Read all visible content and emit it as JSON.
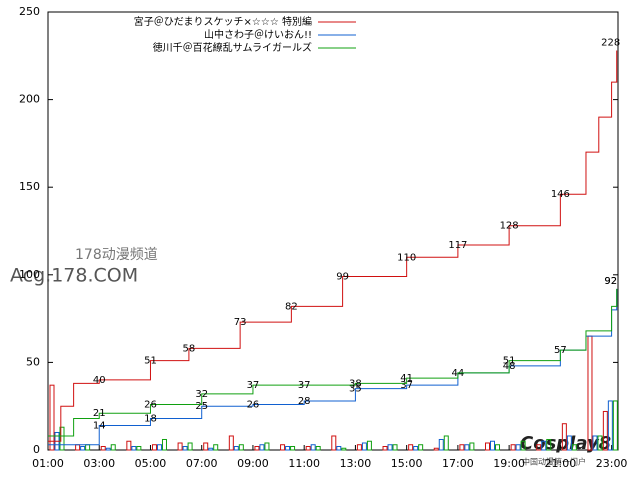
{
  "chart_data": {
    "type": "line",
    "step": true,
    "xlim": [
      1,
      23.25
    ],
    "xticks": [
      {
        "value": 1,
        "label": "01:00"
      },
      {
        "value": 3,
        "label": "03:00"
      },
      {
        "value": 5,
        "label": "05:00"
      },
      {
        "value": 7,
        "label": "07:00"
      },
      {
        "value": 9,
        "label": "09:00"
      },
      {
        "value": 11,
        "label": "11:00"
      },
      {
        "value": 13,
        "label": "13:00"
      },
      {
        "value": 15,
        "label": "15:00"
      },
      {
        "value": 17,
        "label": "17:00"
      },
      {
        "value": 19,
        "label": "19:00"
      },
      {
        "value": 21,
        "label": "21:00"
      },
      {
        "value": 23,
        "label": "23:00"
      }
    ],
    "ylim": [
      0,
      250
    ],
    "yticks": [
      0,
      50,
      100,
      150,
      200,
      250
    ],
    "series": [
      {
        "type": "line",
        "name": "宮子＠ひだまりスケッチ×☆☆☆ 特別編",
        "color": "#d01010",
        "x": [
          1,
          1.5,
          2,
          3,
          5,
          6.5,
          8.5,
          10.5,
          12.5,
          15,
          17,
          19,
          21,
          22,
          22.5,
          23,
          23.2
        ],
        "values": [
          5,
          25,
          38,
          40,
          51,
          58,
          73,
          82,
          99,
          110,
          117,
          128,
          146,
          170,
          190,
          210,
          228
        ],
        "value_labels": [
          null,
          null,
          null,
          "40",
          "51",
          "58",
          "73",
          "82",
          "99",
          "110",
          "117",
          "128",
          "146",
          null,
          null,
          null,
          "228"
        ]
      },
      {
        "type": "line",
        "name": "山中さわ子＠けいおん!!",
        "color": "#1060d0",
        "x": [
          1,
          3,
          5,
          7,
          9,
          11,
          13,
          15,
          17,
          19,
          21,
          22,
          23,
          23.2
        ],
        "values": [
          3,
          14,
          18,
          25,
          26,
          28,
          35,
          37,
          44,
          48,
          57,
          65,
          80,
          92
        ],
        "value_labels": [
          null,
          "14",
          "18",
          "25",
          "26",
          "28",
          "35",
          "37",
          "44",
          "48",
          null,
          null,
          null,
          "92"
        ]
      },
      {
        "type": "line",
        "name": "徳川千＠百花繚乱サムライガールズ",
        "color": "#10a010",
        "x": [
          1,
          2,
          3,
          5,
          7,
          9,
          11,
          13,
          15,
          17,
          19,
          21,
          22,
          23,
          23.2
        ],
        "values": [
          8,
          18,
          21,
          26,
          32,
          37,
          37,
          38,
          41,
          44,
          51,
          57,
          68,
          82,
          92
        ],
        "value_labels": [
          null,
          null,
          "21",
          "26",
          "32",
          "37",
          "37",
          "38",
          "41",
          null,
          "51",
          "57",
          null,
          null,
          "92"
        ]
      },
      {
        "type": "bar",
        "color": "#d01010",
        "offset": 0,
        "x": [
          1,
          2,
          3,
          4,
          5,
          6,
          7,
          8,
          9,
          10,
          11,
          12,
          13,
          14,
          15,
          16,
          17,
          18,
          19,
          20,
          21,
          22,
          22.6
        ],
        "values": [
          37,
          3,
          2,
          5,
          3,
          4,
          4,
          8,
          2,
          3,
          2,
          8,
          3,
          2,
          3,
          1,
          3,
          4,
          3,
          3,
          15,
          65,
          22
        ]
      },
      {
        "type": "bar",
        "color": "#1060d0",
        "offset": 1,
        "x": [
          1,
          2,
          3,
          4,
          5,
          6,
          7,
          8,
          9,
          10,
          11,
          12,
          13,
          14,
          15,
          16,
          17,
          18,
          19,
          20,
          21,
          22,
          22.6
        ],
        "values": [
          10,
          2,
          1,
          2,
          3,
          2,
          1,
          2,
          3,
          2,
          3,
          2,
          4,
          3,
          2,
          6,
          3,
          5,
          3,
          5,
          8,
          8,
          28
        ]
      },
      {
        "type": "bar",
        "color": "#10a010",
        "offset": 2,
        "x": [
          1,
          2,
          3,
          4,
          5,
          6,
          7,
          8,
          9,
          10,
          11,
          12,
          13,
          14,
          15,
          16,
          17,
          18,
          19,
          20,
          21,
          22,
          22.6
        ],
        "values": [
          13,
          3,
          3,
          2,
          6,
          4,
          3,
          3,
          4,
          2,
          2,
          1,
          5,
          3,
          3,
          8,
          4,
          3,
          5,
          6,
          3,
          8,
          28
        ]
      }
    ],
    "watermarks": [
      "178动漫频道",
      "Acg.178.COM",
      "Cosplay8",
      "中国动漫第一门户"
    ]
  }
}
